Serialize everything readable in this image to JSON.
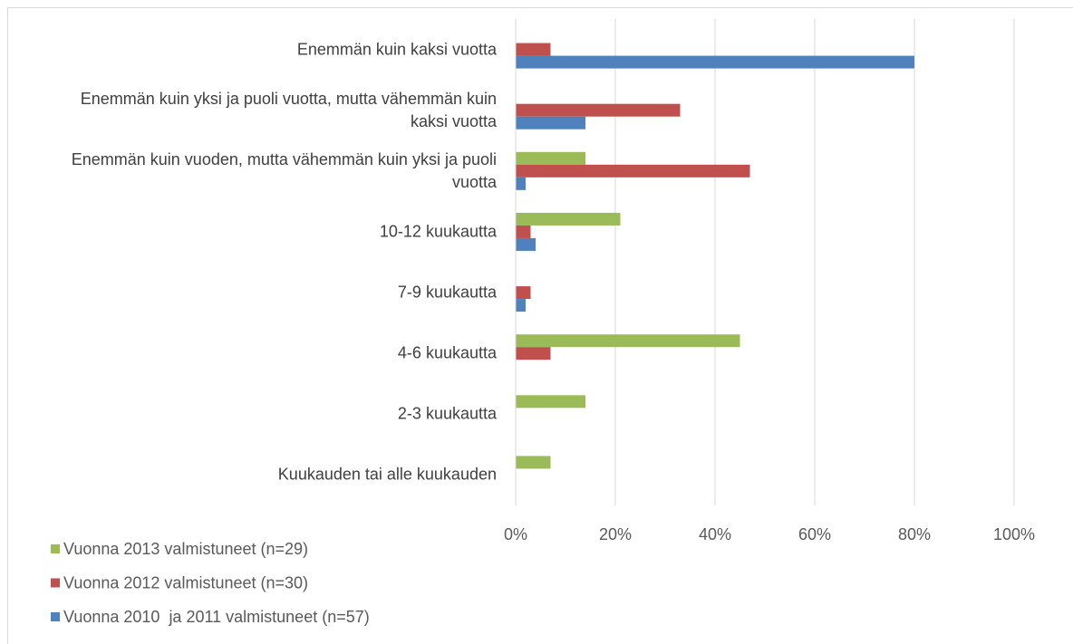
{
  "chart_data": {
    "type": "bar",
    "orientation": "horizontal",
    "categories": [
      "Enemmän kuin kaksi vuotta",
      "Enemmän kuin yksi ja puoli vuotta, mutta vähemmän kuin kaksi vuotta",
      "Enemmän kuin vuoden, mutta vähemmän kuin yksi ja puoli vuotta",
      "10-12 kuukautta",
      "7-9 kuukautta",
      "4-6 kuukautta",
      "2-3 kuukautta",
      "Kuukauden tai alle kuukauden"
    ],
    "series": [
      {
        "name": "Vuonna 2013 valmistuneet (n=29)",
        "color": "#9bbb59",
        "values": [
          0,
          0,
          14,
          21,
          0,
          45,
          14,
          7
        ]
      },
      {
        "name": "Vuonna 2012 valmistuneet (n=30)",
        "color": "#c0504d",
        "values": [
          7,
          33,
          47,
          3,
          3,
          7,
          0,
          0
        ]
      },
      {
        "name": "Vuonna 2010  ja 2011 valmistuneet (n=57)",
        "color": "#4f81bd",
        "values": [
          80,
          14,
          2,
          4,
          2,
          0,
          0,
          0
        ]
      }
    ],
    "xlim": [
      0,
      100
    ],
    "xticks": [
      {
        "value": 0,
        "label": "0%"
      },
      {
        "value": 20,
        "label": "20%"
      },
      {
        "value": 40,
        "label": "40%"
      },
      {
        "value": 60,
        "label": "60%"
      },
      {
        "value": 80,
        "label": "80%"
      },
      {
        "value": 100,
        "label": "100%"
      }
    ],
    "grid": true,
    "legend": "bottom-left"
  }
}
